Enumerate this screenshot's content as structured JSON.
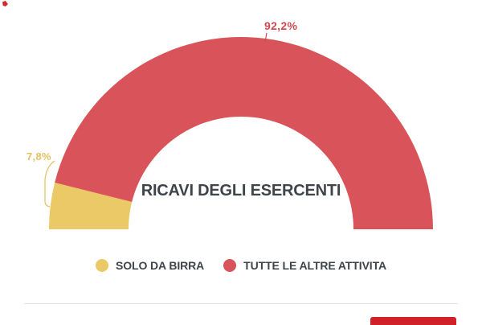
{
  "chart_data": {
    "type": "pie",
    "variant": "half_donut_gauge",
    "title": "RICAVI DEGLI ESERCENTI",
    "categories": [
      "SOLO DA BIRRA",
      "TUTTE LE ALTRE ATTIVITA"
    ],
    "values": [
      7.8,
      92.2
    ],
    "value_labels": [
      "7,8%",
      "92,2%"
    ],
    "colors": [
      "#ecc967",
      "#d9545a"
    ],
    "label_colors": [
      "#e4c05f",
      "#cf4a50"
    ],
    "title_color": "#3f444b",
    "start_angle": 180,
    "end_angle": 0,
    "legend_position": "bottom",
    "total": 100
  },
  "legend": {
    "text_color": "#3f444b",
    "items": [
      {
        "label": "SOLO DA BIRRA",
        "color": "#ecc967"
      },
      {
        "label": "TUTTE LE ALTRE ATTIVITA",
        "color": "#d9545a"
      }
    ]
  },
  "footer": {
    "divider_color": "#e2e2e2",
    "button_color": "#cf2127"
  },
  "decorations": {
    "corner_mark_color": "#d02a2e"
  }
}
